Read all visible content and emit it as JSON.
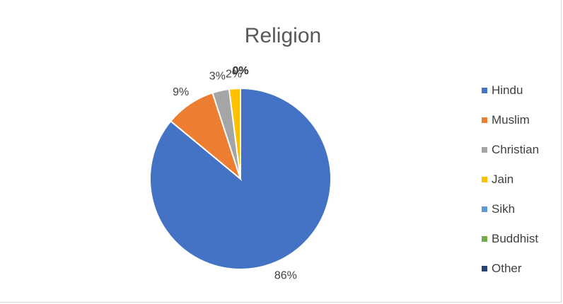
{
  "chart_data": {
    "type": "pie",
    "title": "Religion",
    "categories": [
      "Hindu",
      "Muslim",
      "Christian",
      "Jain",
      "Sikh",
      "Buddhist",
      "Other"
    ],
    "values": [
      86,
      9,
      3,
      2,
      0,
      0,
      0
    ],
    "data_labels": [
      "86%",
      "9%",
      "3%",
      "2%",
      "0%",
      "0%",
      "0%"
    ],
    "colors": [
      "#4472c4",
      "#ed7d31",
      "#a5a5a5",
      "#ffc000",
      "#5b9bd5",
      "#70ad47",
      "#264478"
    ],
    "legend_position": "right",
    "start_angle": "12 o'clock, clockwise"
  }
}
